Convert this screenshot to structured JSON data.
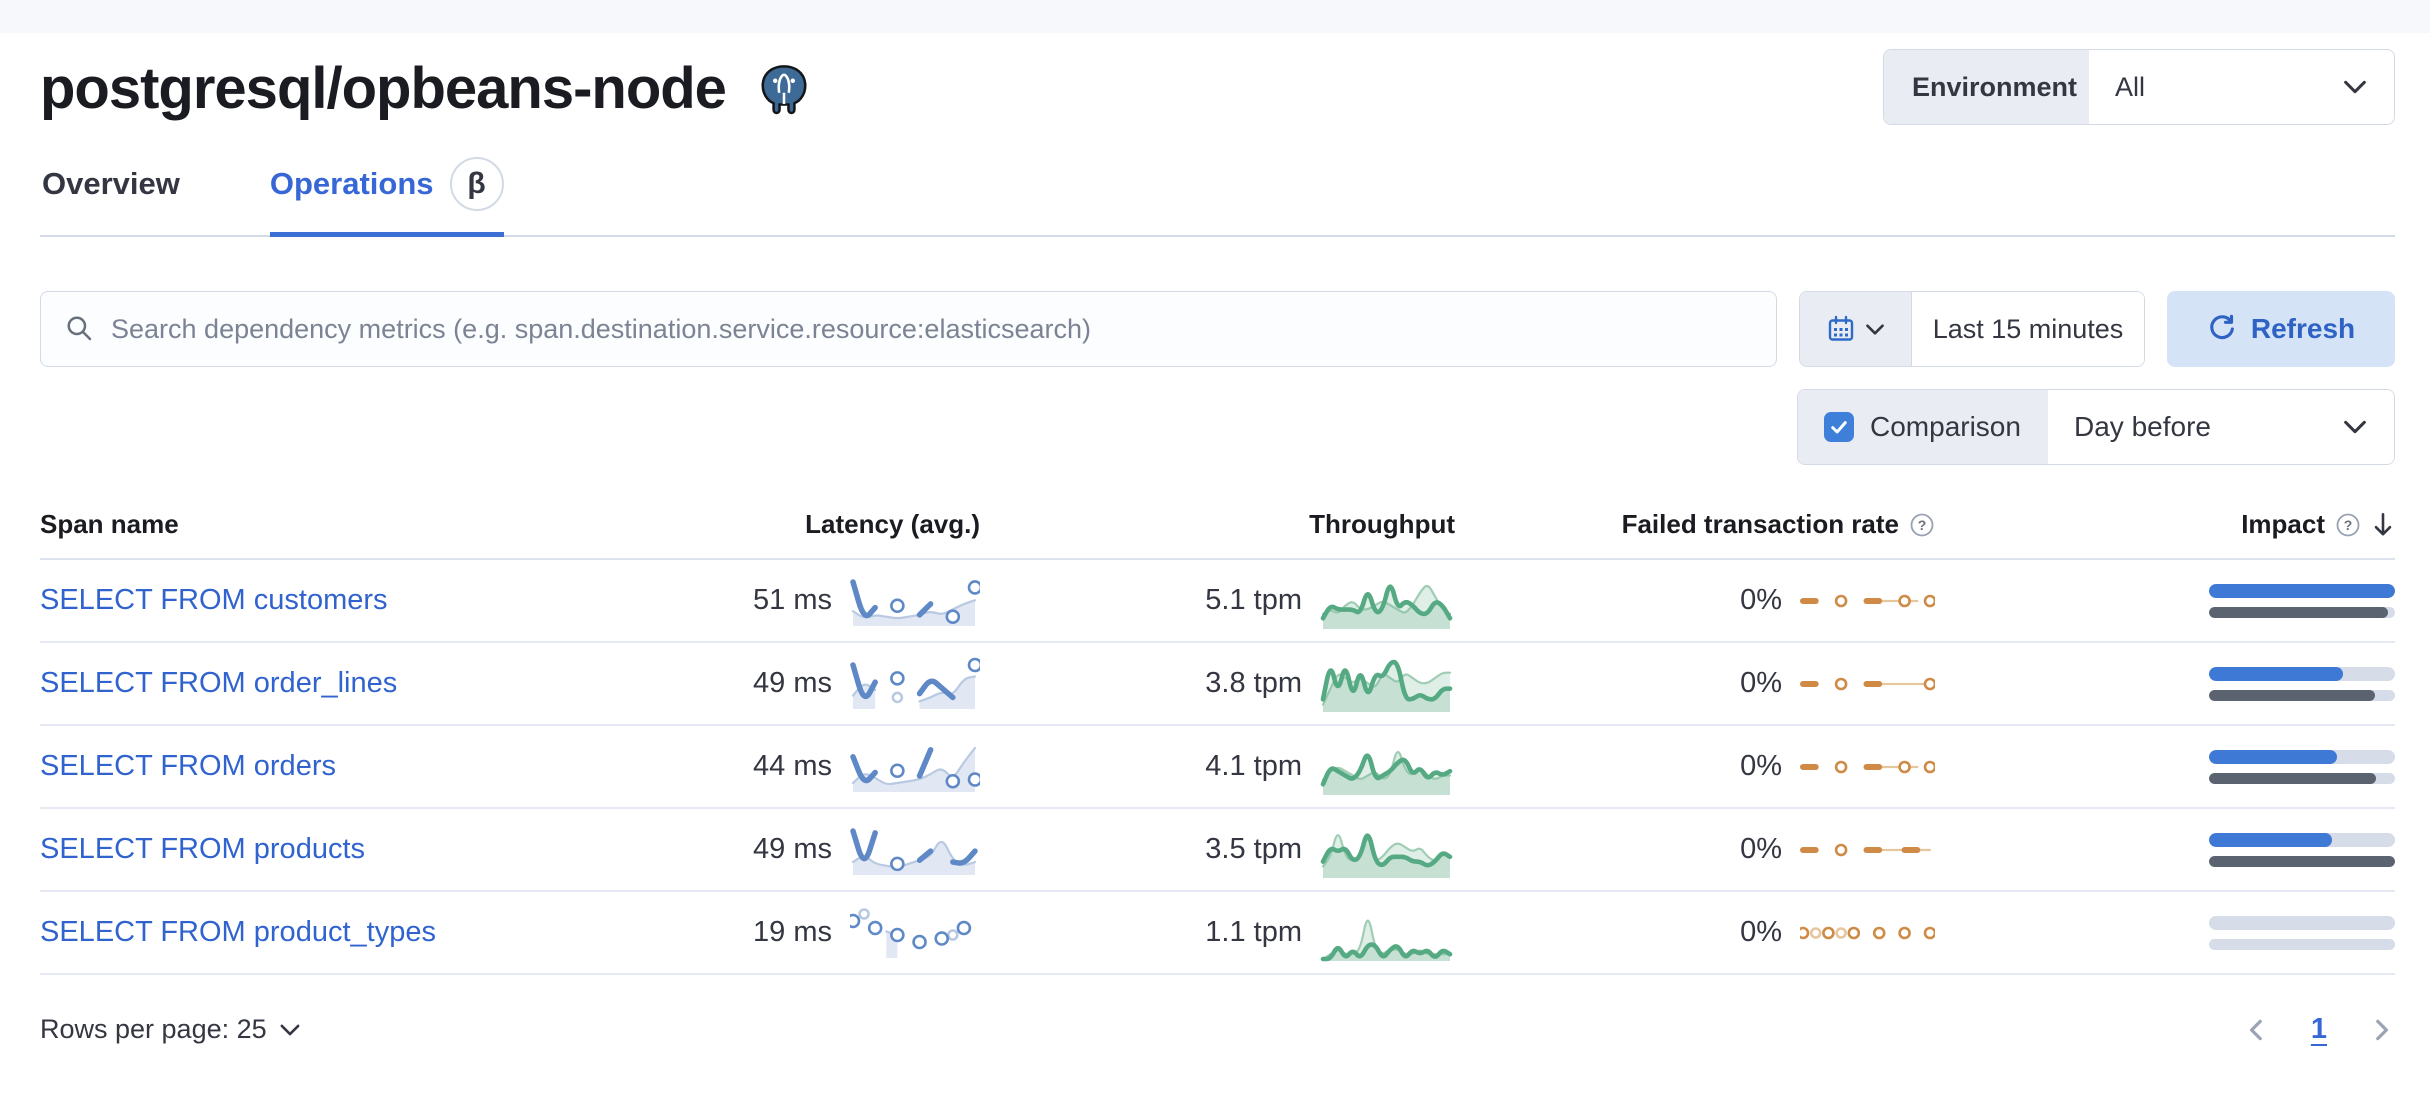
{
  "header": {
    "title": "postgresql/opbeans-node",
    "environment_label": "Environment",
    "environment_value": "All"
  },
  "tabs": [
    {
      "label": "Overview",
      "active": false
    },
    {
      "label": "Operations",
      "active": true,
      "beta": "β"
    }
  ],
  "toolbar": {
    "search_placeholder": "Search dependency metrics (e.g. span.destination.service.resource:elasticsearch)",
    "time_range": "Last 15 minutes",
    "refresh_label": "Refresh",
    "comparison_label": "Comparison",
    "comparison_checked": true,
    "comparison_value": "Day before"
  },
  "table": {
    "columns": [
      "Span name",
      "Latency (avg.)",
      "Throughput",
      "Failed transaction rate",
      "Impact"
    ],
    "rows": [
      {
        "span_name": "SELECT FROM customers",
        "latency": "51 ms",
        "throughput": "5.1 tpm",
        "failed_rate": "0%",
        "impact_pct": 100,
        "impact_prev_pct": 96,
        "latency_spark": {
          "current": [
            46,
            4,
            18,
            null,
            20,
            null,
            10,
            22,
            null,
            8,
            null,
            40
          ],
          "comparison": [
            14,
            6,
            10,
            8,
            6,
            8,
            10,
            14,
            10,
            16,
            22,
            26
          ]
        },
        "throughput_spark": {
          "current": [
            2,
            5,
            4,
            4,
            4,
            3,
            9,
            3,
            4,
            11,
            4,
            6,
            5,
            3,
            3,
            6,
            5,
            2
          ],
          "comparison": [
            3,
            4,
            3,
            5,
            6,
            4,
            4,
            5,
            6,
            5,
            4,
            3,
            5,
            8,
            10,
            7,
            4,
            3
          ]
        },
        "failed_spark": {
          "current": [
            0,
            0,
            null,
            0,
            null,
            0,
            0,
            null,
            0,
            null,
            0
          ],
          "comparison": [
            null,
            null,
            null,
            null,
            null,
            0,
            0,
            0,
            0,
            0,
            null
          ]
        }
      },
      {
        "span_name": "SELECT FROM order_lines",
        "latency": "49 ms",
        "throughput": "3.8 tpm",
        "failed_rate": "0%",
        "impact_pct": 72,
        "impact_prev_pct": 89,
        "latency_spark": {
          "current": [
            44,
            4,
            26,
            null,
            30,
            null,
            14,
            30,
            20,
            10,
            null,
            44
          ],
          "comparison": [
            12,
            26,
            18,
            null,
            10,
            null,
            6,
            10,
            16,
            12,
            30,
            32
          ]
        },
        "throughput_spark": {
          "current": [
            2,
            9,
            3,
            9,
            2,
            8,
            2,
            7,
            6,
            9,
            9,
            2,
            2,
            3,
            2,
            2,
            4,
            4
          ],
          "comparison": [
            1,
            4,
            7,
            6,
            5,
            6,
            5,
            4,
            7,
            6,
            5,
            7,
            6,
            5,
            5,
            6,
            7,
            7
          ]
        },
        "failed_spark": {
          "current": [
            0,
            0,
            null,
            0,
            null,
            0,
            0,
            null,
            null,
            null,
            0
          ],
          "comparison": [
            null,
            null,
            null,
            null,
            null,
            0,
            0,
            0,
            0,
            0,
            0
          ]
        }
      },
      {
        "span_name": "SELECT FROM orders",
        "latency": "44 ms",
        "throughput": "4.1 tpm",
        "failed_rate": "0%",
        "impact_pct": 69,
        "impact_prev_pct": 90,
        "latency_spark": {
          "current": [
            38,
            6,
            20,
            null,
            22,
            null,
            16,
            46,
            null,
            10,
            null,
            12
          ],
          "comparison": [
            8,
            20,
            14,
            6,
            8,
            10,
            12,
            18,
            26,
            12,
            32,
            48
          ]
        },
        "throughput_spark": {
          "current": [
            2,
            6,
            5,
            4,
            3,
            5,
            10,
            3,
            4,
            5,
            7,
            8,
            4,
            6,
            3,
            5,
            4,
            5
          ],
          "comparison": [
            3,
            5,
            6,
            5,
            4,
            3,
            4,
            5,
            3,
            4,
            11,
            5,
            4,
            6,
            4,
            3,
            4,
            4
          ]
        },
        "failed_spark": {
          "current": [
            0,
            0,
            null,
            0,
            null,
            0,
            0,
            null,
            0,
            null,
            0
          ],
          "comparison": [
            null,
            null,
            null,
            null,
            null,
            0,
            0,
            0,
            0,
            0,
            null
          ]
        }
      },
      {
        "span_name": "SELECT FROM products",
        "latency": "49 ms",
        "throughput": "3.5 tpm",
        "failed_rate": "0%",
        "impact_pct": 66,
        "impact_prev_pct": 100,
        "latency_spark": {
          "current": [
            46,
            6,
            44,
            null,
            10,
            null,
            14,
            24,
            null,
            12,
            10,
            24
          ],
          "comparison": [
            12,
            20,
            10,
            8,
            6,
            10,
            14,
            18,
            40,
            14,
            8,
            12
          ]
        },
        "throughput_spark": {
          "current": [
            3,
            6,
            5,
            6,
            3,
            4,
            10,
            3,
            2,
            4,
            4,
            4,
            3,
            3,
            2,
            3,
            5,
            4
          ],
          "comparison": [
            2,
            4,
            10,
            4,
            3,
            4,
            9,
            3,
            4,
            6,
            7,
            6,
            5,
            6,
            4,
            3,
            5,
            4
          ]
        },
        "failed_spark": {
          "current": [
            0,
            0,
            null,
            0,
            null,
            0,
            0,
            null,
            0,
            0,
            null
          ],
          "comparison": [
            null,
            null,
            null,
            null,
            null,
            0,
            0,
            0,
            0,
            0,
            0
          ]
        }
      },
      {
        "span_name": "SELECT FROM product_types",
        "latency": "19 ms",
        "throughput": "1.1 tpm",
        "failed_rate": "0%",
        "impact_pct": 0,
        "impact_prev_pct": 0,
        "latency_spark": {
          "current": [
            20,
            null,
            16,
            null,
            12,
            null,
            8,
            null,
            10,
            null,
            16,
            null
          ],
          "comparison": [
            null,
            24,
            null,
            14,
            12,
            null,
            8,
            null,
            null,
            12,
            null,
            null
          ]
        },
        "throughput_spark": {
          "current": [
            0,
            0,
            3,
            0,
            2,
            0,
            3,
            3,
            0,
            2,
            3,
            0,
            2,
            1,
            2,
            0,
            2,
            1
          ],
          "comparison": [
            0,
            1,
            2,
            1,
            1,
            2,
            10,
            2,
            1,
            2,
            2,
            1,
            1,
            2,
            1,
            1,
            1,
            1
          ]
        },
        "failed_spark": {
          "current": [
            0,
            null,
            0,
            null,
            0,
            null,
            0,
            null,
            0,
            null,
            0
          ],
          "comparison": [
            null,
            0,
            null,
            0,
            null,
            null,
            null,
            null,
            null,
            null,
            null
          ]
        }
      }
    ]
  },
  "footer": {
    "rows_per_page_label": "Rows per page: 25",
    "page": "1"
  },
  "colors": {
    "accent_blue": "#3767d6",
    "impact_bar": "#3e79d6",
    "impact_prev": "#5b6270",
    "latency_line": "#5f89c6",
    "latency_comp": "#b9c9e2",
    "latency_area": "rgba(122,152,199,0.22)",
    "green_line": "#55a983",
    "green_comp": "#9fcdb4",
    "green_area": "rgba(121,184,151,0.24)",
    "orange": "#cf8a45",
    "orange_comp": "#e6c69e"
  }
}
